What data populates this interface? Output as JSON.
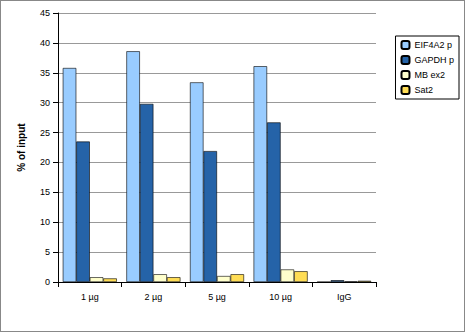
{
  "chart_data": {
    "type": "bar",
    "y_label": "% of input",
    "categories": [
      "1 µg",
      "2 µg",
      "5 µg",
      "10 µg",
      "IgG"
    ],
    "series": [
      {
        "name": "EIF4A2 p",
        "color": "#99CCFF",
        "values": [
          35.8,
          38.6,
          33.4,
          36.1,
          0
        ]
      },
      {
        "name": "GAPDH p",
        "color": "#2563A8",
        "values": [
          23.5,
          29.8,
          21.9,
          26.7,
          0.3
        ]
      },
      {
        "name": "MB ex2",
        "color": "#FFFFCC",
        "values": [
          0.8,
          1.3,
          1.0,
          2.1,
          0.1
        ]
      },
      {
        "name": "Sat2",
        "color": "#FFDD55",
        "values": [
          0.6,
          0.8,
          1.3,
          1.8,
          0.2
        ]
      }
    ],
    "ylim": [
      0,
      45
    ],
    "yticks": [
      0,
      5,
      10,
      15,
      20,
      25,
      30,
      35,
      40,
      45
    ],
    "grid": true,
    "legend": "right"
  }
}
